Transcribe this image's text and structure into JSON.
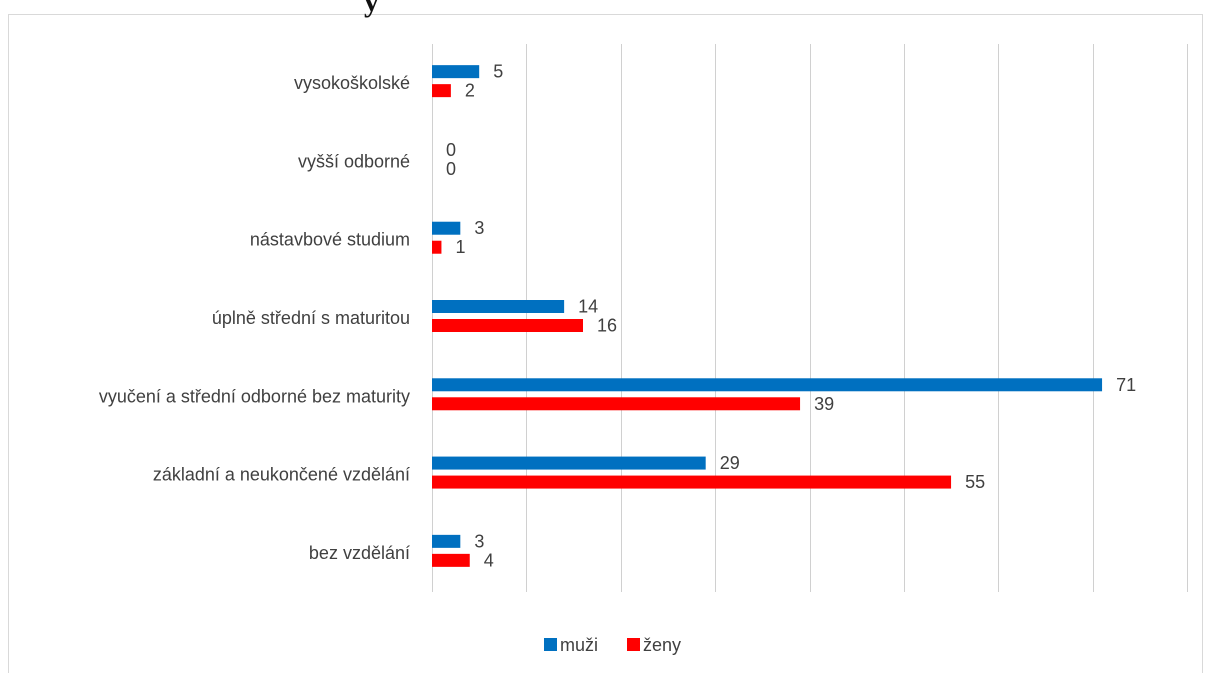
{
  "title_fragment": "y",
  "chart_data": {
    "type": "bar",
    "orientation": "horizontal",
    "categories": [
      "vysokoškolské",
      "vyšší odborné",
      "nástavbové studium",
      "úplně střední s maturitou",
      "vyučení a střední odborné bez maturity",
      "základní a neukončené vzdělání",
      "bez vzdělání"
    ],
    "series": [
      {
        "name": "muži",
        "color": "#0070C0",
        "values": [
          5,
          0,
          3,
          14,
          71,
          29,
          3
        ]
      },
      {
        "name": "ženy",
        "color": "#FF0000",
        "values": [
          2,
          0,
          1,
          16,
          39,
          55,
          4
        ]
      }
    ],
    "xlim": [
      0,
      80
    ],
    "grid": true,
    "legend_position": "bottom",
    "gridline_color": "#d0d0d0"
  }
}
